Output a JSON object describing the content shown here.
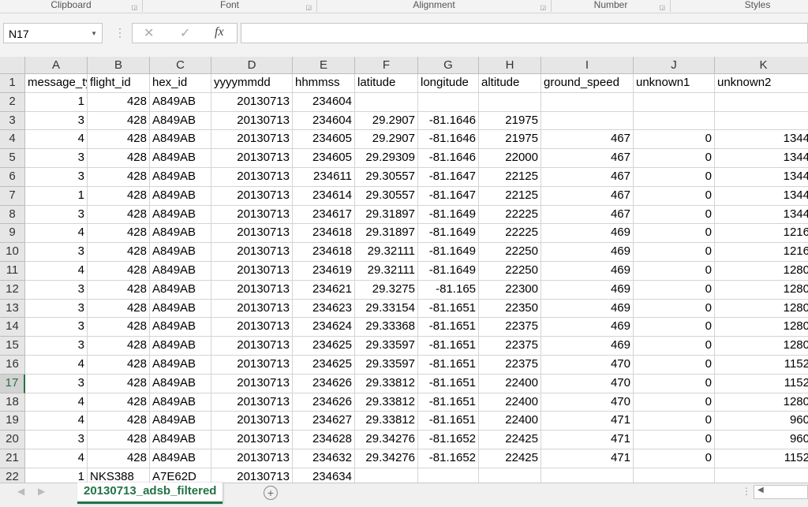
{
  "ribbon": {
    "groups": [
      "Clipboard",
      "Font",
      "Alignment",
      "Number",
      "Styles"
    ]
  },
  "formula_bar": {
    "name_box": "N17",
    "cancel_icon": "✕",
    "enter_icon": "✓",
    "fx_label": "fx",
    "formula": ""
  },
  "selected_row": "17",
  "columns": [
    "A",
    "B",
    "C",
    "D",
    "E",
    "F",
    "G",
    "H",
    "I",
    "J",
    "K"
  ],
  "row_numbers": [
    "1",
    "2",
    "3",
    "4",
    "5",
    "6",
    "7",
    "8",
    "9",
    "10",
    "11",
    "12",
    "13",
    "14",
    "15",
    "16",
    "17",
    "18",
    "19",
    "20",
    "21",
    "22"
  ],
  "rows": [
    [
      "message_type",
      "flight_id",
      "hex_id",
      "yyyymmdd",
      "hhmmss",
      "latitude",
      "longitude",
      "altitude",
      "ground_speed",
      "unknown1",
      "unknown2"
    ],
    [
      "1",
      "428",
      "A849AB",
      "20130713",
      "234604",
      "",
      "",
      "",
      "",
      "",
      ""
    ],
    [
      "3",
      "428",
      "A849AB",
      "20130713",
      "234604",
      "29.2907",
      "-81.1646",
      "21975",
      "",
      "",
      ""
    ],
    [
      "4",
      "428",
      "A849AB",
      "20130713",
      "234605",
      "29.2907",
      "-81.1646",
      "21975",
      "467",
      "0",
      "1344"
    ],
    [
      "3",
      "428",
      "A849AB",
      "20130713",
      "234605",
      "29.29309",
      "-81.1646",
      "22000",
      "467",
      "0",
      "1344"
    ],
    [
      "3",
      "428",
      "A849AB",
      "20130713",
      "234611",
      "29.30557",
      "-81.1647",
      "22125",
      "467",
      "0",
      "1344"
    ],
    [
      "1",
      "428",
      "A849AB",
      "20130713",
      "234614",
      "29.30557",
      "-81.1647",
      "22125",
      "467",
      "0",
      "1344"
    ],
    [
      "3",
      "428",
      "A849AB",
      "20130713",
      "234617",
      "29.31897",
      "-81.1649",
      "22225",
      "467",
      "0",
      "1344"
    ],
    [
      "4",
      "428",
      "A849AB",
      "20130713",
      "234618",
      "29.31897",
      "-81.1649",
      "22225",
      "469",
      "0",
      "1216"
    ],
    [
      "3",
      "428",
      "A849AB",
      "20130713",
      "234618",
      "29.32111",
      "-81.1649",
      "22250",
      "469",
      "0",
      "1216"
    ],
    [
      "4",
      "428",
      "A849AB",
      "20130713",
      "234619",
      "29.32111",
      "-81.1649",
      "22250",
      "469",
      "0",
      "1280"
    ],
    [
      "3",
      "428",
      "A849AB",
      "20130713",
      "234621",
      "29.3275",
      "-81.165",
      "22300",
      "469",
      "0",
      "1280"
    ],
    [
      "3",
      "428",
      "A849AB",
      "20130713",
      "234623",
      "29.33154",
      "-81.1651",
      "22350",
      "469",
      "0",
      "1280"
    ],
    [
      "3",
      "428",
      "A849AB",
      "20130713",
      "234624",
      "29.33368",
      "-81.1651",
      "22375",
      "469",
      "0",
      "1280"
    ],
    [
      "3",
      "428",
      "A849AB",
      "20130713",
      "234625",
      "29.33597",
      "-81.1651",
      "22375",
      "469",
      "0",
      "1280"
    ],
    [
      "4",
      "428",
      "A849AB",
      "20130713",
      "234625",
      "29.33597",
      "-81.1651",
      "22375",
      "470",
      "0",
      "1152"
    ],
    [
      "3",
      "428",
      "A849AB",
      "20130713",
      "234626",
      "29.33812",
      "-81.1651",
      "22400",
      "470",
      "0",
      "1152"
    ],
    [
      "4",
      "428",
      "A849AB",
      "20130713",
      "234626",
      "29.33812",
      "-81.1651",
      "22400",
      "470",
      "0",
      "1280"
    ],
    [
      "4",
      "428",
      "A849AB",
      "20130713",
      "234627",
      "29.33812",
      "-81.1651",
      "22400",
      "471",
      "0",
      "960"
    ],
    [
      "3",
      "428",
      "A849AB",
      "20130713",
      "234628",
      "29.34276",
      "-81.1652",
      "22425",
      "471",
      "0",
      "960"
    ],
    [
      "4",
      "428",
      "A849AB",
      "20130713",
      "234632",
      "29.34276",
      "-81.1652",
      "22425",
      "471",
      "0",
      "1152"
    ],
    [
      "1",
      "NKS388",
      "A7E62D",
      "20130713",
      "234634",
      "",
      "",
      "",
      "",
      "",
      ""
    ]
  ],
  "sheet_tabs": [
    {
      "label": "20130713_adsb_filtered",
      "active": true
    }
  ],
  "add_sheet_icon": "+",
  "colors": {
    "accent": "#217346",
    "header_bg": "#e6e6e6",
    "gridline": "#d4d4d4"
  }
}
